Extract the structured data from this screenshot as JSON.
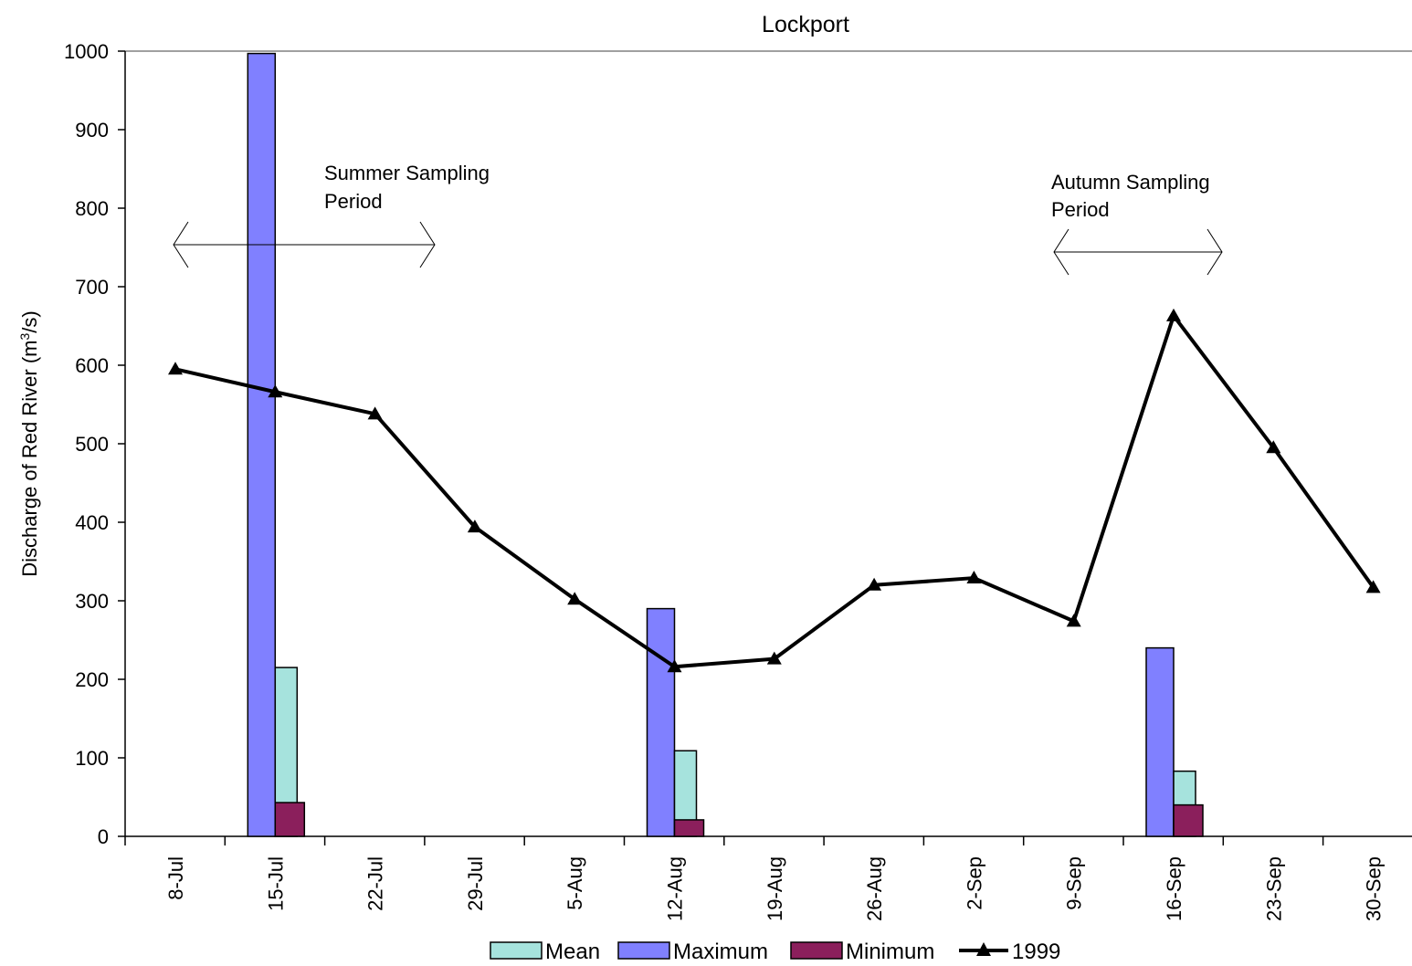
{
  "chart_data": {
    "type": "bar",
    "title": "Lockport",
    "ylabel": "Discharge of Red River (m",
    "ylabel_sup": "3",
    "ylabel_tail": "/s)",
    "ylim": [
      0,
      1000
    ],
    "yticks": [
      0,
      100,
      200,
      300,
      400,
      500,
      600,
      700,
      800,
      900,
      1000
    ],
    "categories": [
      "8-Jul",
      "15-Jul",
      "22-Jul",
      "29-Jul",
      "5-Aug",
      "12-Aug",
      "19-Aug",
      "26-Aug",
      "2-Sep",
      "9-Sep",
      "16-Sep",
      "23-Sep",
      "30-Sep"
    ],
    "series": [
      {
        "name": "Maximum",
        "kind": "bar",
        "color": "#8080ff",
        "values": [
          null,
          997,
          null,
          null,
          null,
          290,
          null,
          null,
          null,
          null,
          240,
          null,
          null
        ]
      },
      {
        "name": "Mean",
        "kind": "bar",
        "color": "#a6e3dd",
        "values": [
          null,
          215,
          null,
          null,
          null,
          109,
          null,
          null,
          null,
          null,
          83,
          null,
          null
        ]
      },
      {
        "name": "Minimum",
        "kind": "bar",
        "color": "#8b1f5c",
        "values": [
          null,
          43,
          null,
          null,
          null,
          21,
          null,
          null,
          null,
          null,
          40,
          null,
          null
        ]
      },
      {
        "name": "1999",
        "kind": "line",
        "color": "#000000",
        "values": [
          595,
          566,
          538,
          394,
          302,
          216,
          226,
          320,
          329,
          274,
          663,
          495,
          317
        ]
      }
    ],
    "legend": {
      "placement": "bottom",
      "order": [
        "Mean",
        "Maximum",
        "Minimum",
        "1999"
      ]
    },
    "annotations": [
      {
        "line1": "Summer Sampling",
        "line2": "Period",
        "from": "8-Jul",
        "to": "29-Jul"
      },
      {
        "line1": "Autumn Sampling",
        "line2": "Period",
        "from": "9-Sep",
        "to": "23-Sep"
      }
    ]
  }
}
